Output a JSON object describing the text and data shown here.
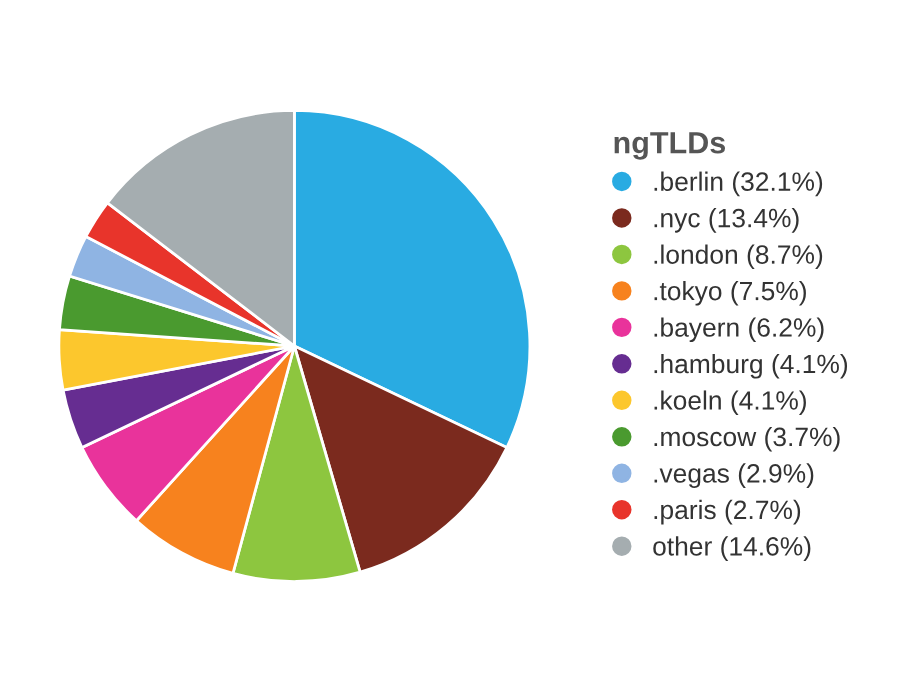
{
  "chart_data": {
    "type": "pie",
    "legend_title": "ngTLDs",
    "legend": "right",
    "categories": [
      ".berlin",
      ".nyc",
      ".london",
      ".tokyo",
      ".bayern",
      ".hamburg",
      ".koeln",
      ".moscow",
      ".vegas",
      ".paris",
      "other"
    ],
    "values": [
      32.1,
      13.4,
      8.7,
      7.5,
      6.2,
      4.1,
      4.1,
      3.7,
      2.9,
      2.7,
      14.6
    ],
    "value_labels": [
      "(32.1%)",
      "(13.4%)",
      "(8.7%)",
      "(7.5%)",
      "(6.2%)",
      "(4.1%)",
      "(4.1%)",
      "(3.7%)",
      "(2.9%)",
      "(2.7%)",
      "(14.6%)"
    ],
    "colors": [
      "#29abe2",
      "#7b2a1e",
      "#8dc63f",
      "#f7821e",
      "#e9339b",
      "#662d91",
      "#fcc72d",
      "#4a9a2f",
      "#8fb4e3",
      "#e8342b",
      "#a5adb0"
    ]
  }
}
